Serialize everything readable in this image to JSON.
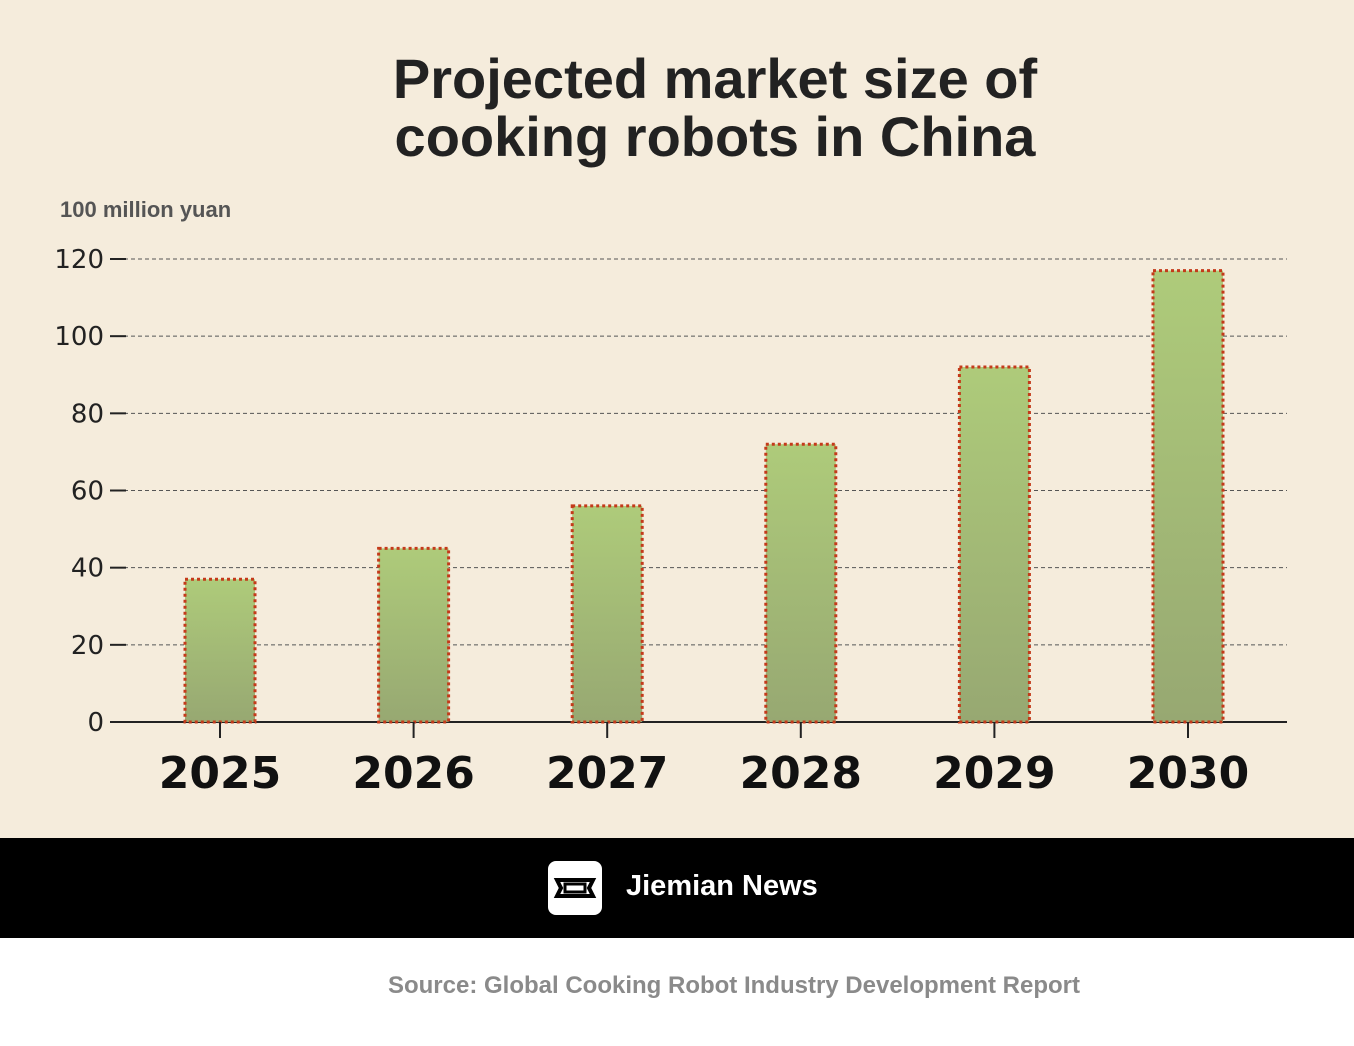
{
  "chart_data": {
    "type": "bar",
    "title_line1": "Projected market size of",
    "title_line2": "cooking robots in China",
    "unit_label": "100 million yuan",
    "categories": [
      "2025",
      "2026",
      "2027",
      "2028",
      "2029",
      "2030"
    ],
    "values": [
      37,
      45,
      56,
      72,
      92,
      117
    ],
    "y_ticks": [
      0,
      20,
      40,
      60,
      80,
      100,
      120
    ],
    "ylim": [
      0,
      120
    ],
    "grid": true,
    "bar_color_top": "#aecb7a",
    "bar_color_bottom": "#97a872",
    "bar_border_color": "#c43a1a"
  },
  "footer": {
    "brand": "Jiemian News",
    "source": "Source: Global Cooking Robot Industry Development Report"
  }
}
